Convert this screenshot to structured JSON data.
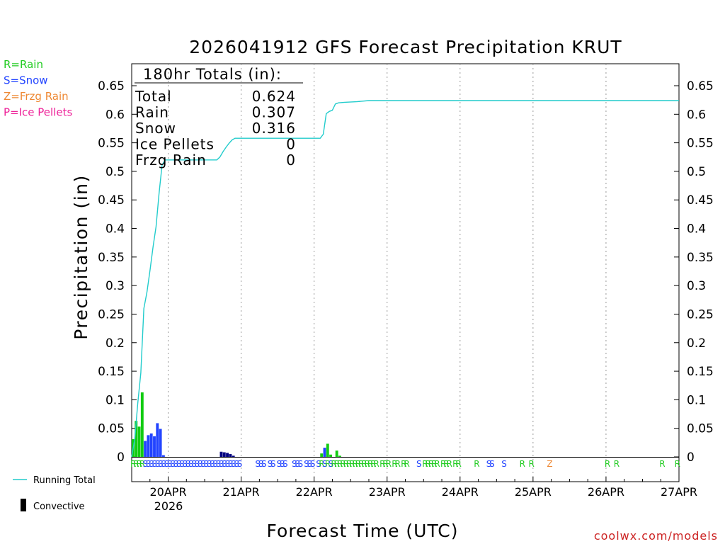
{
  "chart_data": {
    "type": "bar",
    "title": "2026041912 GFS Forecast Precipitation KRUT",
    "xlabel": "Forecast Time (UTC)",
    "ylabel": "Precipitation (in)",
    "ylim": [
      0,
      0.68
    ],
    "xlim_hours": [
      0,
      180
    ],
    "y_ticks": [
      "0",
      "0.05",
      "0.1",
      "0.15",
      "0.2",
      "0.25",
      "0.3",
      "0.35",
      "0.4",
      "0.45",
      "0.5",
      "0.55",
      "0.6",
      "0.65"
    ],
    "y_tick_values": [
      0,
      0.05,
      0.1,
      0.15,
      0.2,
      0.25,
      0.3,
      0.35,
      0.4,
      0.45,
      0.5,
      0.55,
      0.6,
      0.65
    ],
    "x_ticks": [
      {
        "label": "20APR",
        "hour": 12
      },
      {
        "label": "21APR",
        "hour": 36
      },
      {
        "label": "22APR",
        "hour": 60
      },
      {
        "label": "23APR",
        "hour": 84
      },
      {
        "label": "24APR",
        "hour": 108
      },
      {
        "label": "25APR",
        "hour": 132
      },
      {
        "label": "26APR",
        "hour": 156
      },
      {
        "label": "27APR",
        "hour": 180
      }
    ],
    "x_year_label": "2026",
    "legend_types": [
      {
        "code": "R",
        "label": "R=Rain",
        "color": "#22cc22"
      },
      {
        "code": "S",
        "label": "S=Snow",
        "color": "#2244ff"
      },
      {
        "code": "Z",
        "label": "Z=Frzg Rain",
        "color": "#ee8833"
      },
      {
        "code": "P",
        "label": "P=Ice Pellets",
        "color": "#ee2299"
      }
    ],
    "legend_bottom": {
      "running_total": "Running Total",
      "convective": "Convective"
    },
    "totals_box": {
      "title": "180hr Totals (in):",
      "rows": [
        {
          "label": "Total",
          "value": "0.624"
        },
        {
          "label": "Rain",
          "value": "0.307"
        },
        {
          "label": "Snow",
          "value": "0.316"
        },
        {
          "label": "Ice Pellets",
          "value": "0"
        },
        {
          "label": "Frzg Rain",
          "value": "0"
        }
      ]
    },
    "colors": {
      "rain": "#11cc11",
      "snow": "#2244ff",
      "convective": "#000080",
      "running_total": "#22cccc",
      "grid": "#999999",
      "credit": "#cc2222"
    },
    "bars": [
      {
        "hour": 0.5,
        "value": 0.031,
        "type": "rain"
      },
      {
        "hour": 1.5,
        "value": 0.063,
        "type": "rain"
      },
      {
        "hour": 2.5,
        "value": 0.053,
        "type": "rain"
      },
      {
        "hour": 3.5,
        "value": 0.113,
        "type": "rain"
      },
      {
        "hour": 4.5,
        "value": 0.028,
        "type": "snow"
      },
      {
        "hour": 5.5,
        "value": 0.038,
        "type": "snow"
      },
      {
        "hour": 6.5,
        "value": 0.041,
        "type": "snow"
      },
      {
        "hour": 7.5,
        "value": 0.036,
        "type": "snow"
      },
      {
        "hour": 8.5,
        "value": 0.059,
        "type": "snow"
      },
      {
        "hour": 9.5,
        "value": 0.049,
        "type": "snow"
      },
      {
        "hour": 10.5,
        "value": 0.003,
        "type": "snow"
      },
      {
        "hour": 29.5,
        "value": 0.009,
        "type": "convective"
      },
      {
        "hour": 30.5,
        "value": 0.008,
        "type": "convective"
      },
      {
        "hour": 31.5,
        "value": 0.007,
        "type": "convective"
      },
      {
        "hour": 32.5,
        "value": 0.005,
        "type": "convective"
      },
      {
        "hour": 33.5,
        "value": 0.002,
        "type": "convective"
      },
      {
        "hour": 62.5,
        "value": 0.006,
        "type": "rain"
      },
      {
        "hour": 63.5,
        "value": 0.016,
        "type": "snow"
      },
      {
        "hour": 64.5,
        "value": 0.023,
        "type": "rain"
      },
      {
        "hour": 65.5,
        "value": 0.004,
        "type": "rain"
      },
      {
        "hour": 67.5,
        "value": 0.011,
        "type": "rain"
      },
      {
        "hour": 68.5,
        "value": 0.002,
        "type": "rain"
      }
    ],
    "running_total": [
      {
        "hour": 0,
        "value": 0
      },
      {
        "hour": 1,
        "value": 0.031
      },
      {
        "hour": 2,
        "value": 0.094
      },
      {
        "hour": 3,
        "value": 0.147
      },
      {
        "hour": 4,
        "value": 0.26
      },
      {
        "hour": 5,
        "value": 0.288
      },
      {
        "hour": 6,
        "value": 0.326
      },
      {
        "hour": 7,
        "value": 0.367
      },
      {
        "hour": 8,
        "value": 0.403
      },
      {
        "hour": 9,
        "value": 0.462
      },
      {
        "hour": 10,
        "value": 0.511
      },
      {
        "hour": 11,
        "value": 0.52
      },
      {
        "hour": 28,
        "value": 0.52
      },
      {
        "hour": 29,
        "value": 0.525
      },
      {
        "hour": 30,
        "value": 0.534
      },
      {
        "hour": 31,
        "value": 0.542
      },
      {
        "hour": 32,
        "value": 0.549
      },
      {
        "hour": 33,
        "value": 0.555
      },
      {
        "hour": 34,
        "value": 0.558
      },
      {
        "hour": 62,
        "value": 0.558
      },
      {
        "hour": 63,
        "value": 0.565
      },
      {
        "hour": 64,
        "value": 0.601
      },
      {
        "hour": 65,
        "value": 0.605
      },
      {
        "hour": 66,
        "value": 0.607
      },
      {
        "hour": 67,
        "value": 0.618
      },
      {
        "hour": 68,
        "value": 0.62
      },
      {
        "hour": 70,
        "value": 0.621
      },
      {
        "hour": 74,
        "value": 0.622
      },
      {
        "hour": 78,
        "value": 0.624
      },
      {
        "hour": 180,
        "value": 0.624
      }
    ],
    "type_markers": [
      {
        "hour": 0.5,
        "code": "R"
      },
      {
        "hour": 1.5,
        "code": "R"
      },
      {
        "hour": 2.5,
        "code": "R"
      },
      {
        "hour": 3.5,
        "code": "R"
      },
      {
        "hour": 4.5,
        "code": "S"
      },
      {
        "hour": 5.5,
        "code": "S"
      },
      {
        "hour": 6.5,
        "code": "S"
      },
      {
        "hour": 7.5,
        "code": "S"
      },
      {
        "hour": 8.5,
        "code": "S"
      },
      {
        "hour": 9.5,
        "code": "S"
      },
      {
        "hour": 10.5,
        "code": "S"
      },
      {
        "hour": 11.5,
        "code": "S"
      },
      {
        "hour": 12.5,
        "code": "S"
      },
      {
        "hour": 13.5,
        "code": "S"
      },
      {
        "hour": 14.5,
        "code": "S"
      },
      {
        "hour": 15.5,
        "code": "S"
      },
      {
        "hour": 16.5,
        "code": "S"
      },
      {
        "hour": 17.5,
        "code": "S"
      },
      {
        "hour": 18.5,
        "code": "S"
      },
      {
        "hour": 19.5,
        "code": "S"
      },
      {
        "hour": 20.5,
        "code": "S"
      },
      {
        "hour": 21.5,
        "code": "S"
      },
      {
        "hour": 22.5,
        "code": "S"
      },
      {
        "hour": 23.5,
        "code": "S"
      },
      {
        "hour": 24.5,
        "code": "S"
      },
      {
        "hour": 25.5,
        "code": "S"
      },
      {
        "hour": 26.5,
        "code": "S"
      },
      {
        "hour": 27.5,
        "code": "S"
      },
      {
        "hour": 28.5,
        "code": "S"
      },
      {
        "hour": 29.5,
        "code": "S"
      },
      {
        "hour": 30.5,
        "code": "S"
      },
      {
        "hour": 31.5,
        "code": "S"
      },
      {
        "hour": 32.5,
        "code": "S"
      },
      {
        "hour": 33.5,
        "code": "S"
      },
      {
        "hour": 34.5,
        "code": "S"
      },
      {
        "hour": 35.5,
        "code": "S"
      },
      {
        "hour": 41.5,
        "code": "S"
      },
      {
        "hour": 42.5,
        "code": "S"
      },
      {
        "hour": 43.5,
        "code": "S"
      },
      {
        "hour": 45.5,
        "code": "S"
      },
      {
        "hour": 46.5,
        "code": "S"
      },
      {
        "hour": 48.5,
        "code": "S"
      },
      {
        "hour": 49.5,
        "code": "S"
      },
      {
        "hour": 50.5,
        "code": "S"
      },
      {
        "hour": 53.5,
        "code": "S"
      },
      {
        "hour": 54.5,
        "code": "S"
      },
      {
        "hour": 55.5,
        "code": "S"
      },
      {
        "hour": 57.5,
        "code": "S"
      },
      {
        "hour": 58.5,
        "code": "S"
      },
      {
        "hour": 59.5,
        "code": "S"
      },
      {
        "hour": 61.5,
        "code": "S"
      },
      {
        "hour": 62.5,
        "code": "R"
      },
      {
        "hour": 63.5,
        "code": "S"
      },
      {
        "hour": 64.5,
        "code": "R"
      },
      {
        "hour": 65.5,
        "code": "S"
      },
      {
        "hour": 66.5,
        "code": "R"
      },
      {
        "hour": 67.5,
        "code": "R"
      },
      {
        "hour": 68.5,
        "code": "R"
      },
      {
        "hour": 69.5,
        "code": "R"
      },
      {
        "hour": 70.5,
        "code": "R"
      },
      {
        "hour": 71.5,
        "code": "R"
      },
      {
        "hour": 72.5,
        "code": "R"
      },
      {
        "hour": 73.5,
        "code": "R"
      },
      {
        "hour": 74.5,
        "code": "R"
      },
      {
        "hour": 75.5,
        "code": "R"
      },
      {
        "hour": 76.5,
        "code": "R"
      },
      {
        "hour": 77.5,
        "code": "R"
      },
      {
        "hour": 78.5,
        "code": "R"
      },
      {
        "hour": 79.5,
        "code": "R"
      },
      {
        "hour": 80.5,
        "code": "R"
      },
      {
        "hour": 82.5,
        "code": "R"
      },
      {
        "hour": 83.5,
        "code": "R"
      },
      {
        "hour": 84.5,
        "code": "R"
      },
      {
        "hour": 86.5,
        "code": "R"
      },
      {
        "hour": 87.5,
        "code": "R"
      },
      {
        "hour": 89.5,
        "code": "R"
      },
      {
        "hour": 90.5,
        "code": "R"
      },
      {
        "hour": 94.5,
        "code": "S"
      },
      {
        "hour": 96.5,
        "code": "R"
      },
      {
        "hour": 97.5,
        "code": "R"
      },
      {
        "hour": 98.5,
        "code": "R"
      },
      {
        "hour": 99.5,
        "code": "R"
      },
      {
        "hour": 100.5,
        "code": "R"
      },
      {
        "hour": 102.5,
        "code": "R"
      },
      {
        "hour": 103.5,
        "code": "R"
      },
      {
        "hour": 104.5,
        "code": "R"
      },
      {
        "hour": 106.5,
        "code": "R"
      },
      {
        "hour": 107.5,
        "code": "R"
      },
      {
        "hour": 113.5,
        "code": "R"
      },
      {
        "hour": 117.5,
        "code": "S"
      },
      {
        "hour": 118.5,
        "code": "S"
      },
      {
        "hour": 122.5,
        "code": "S"
      },
      {
        "hour": 128.5,
        "code": "R"
      },
      {
        "hour": 131.5,
        "code": "R"
      },
      {
        "hour": 137.5,
        "code": "Z"
      },
      {
        "hour": 156.5,
        "code": "R"
      },
      {
        "hour": 159.5,
        "code": "R"
      },
      {
        "hour": 174.5,
        "code": "R"
      },
      {
        "hour": 179.5,
        "code": "R"
      }
    ]
  },
  "credit": "coolwx.com/models"
}
